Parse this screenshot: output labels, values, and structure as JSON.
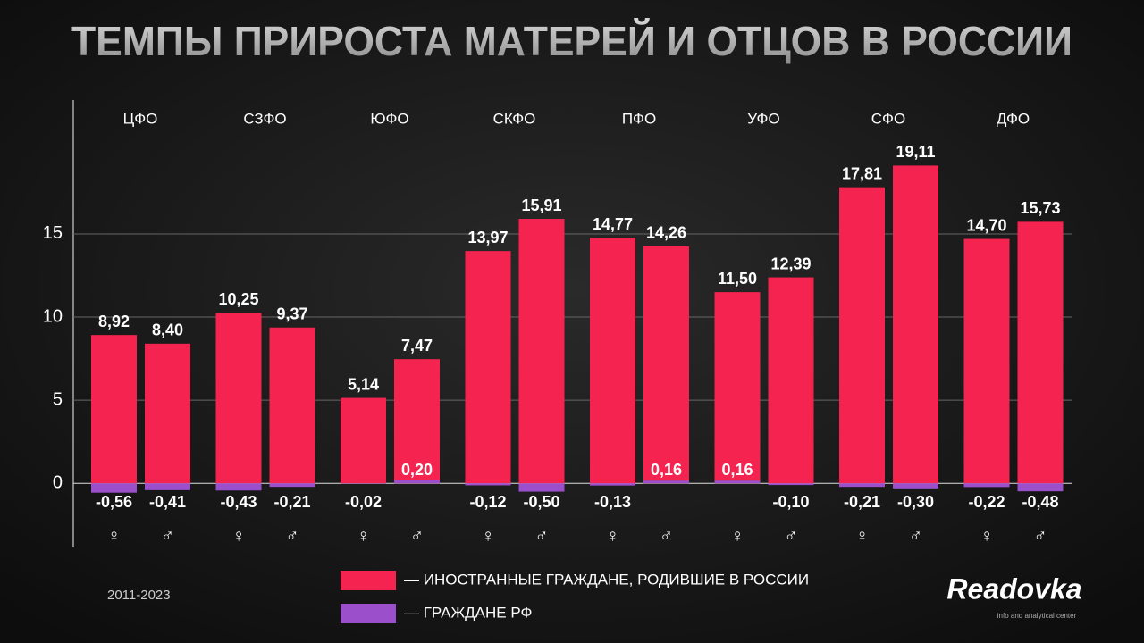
{
  "chart_data": {
    "type": "bar",
    "title": "ТЕМПЫ ПРИРОСТА МАТЕРЕЙ И ОТЦОВ В РОССИИ",
    "groups": [
      "ЦФО",
      "СЗФО",
      "ЮФО",
      "СКФО",
      "ПФО",
      "УФО",
      "СФО",
      "ДФО"
    ],
    "categories": [
      "♀",
      "♂",
      "♀",
      "♂",
      "♀",
      "♂",
      "♀",
      "♂",
      "♀",
      "♂",
      "♀",
      "♂",
      "♀",
      "♂",
      "♀",
      "♂"
    ],
    "series": [
      {
        "name": "— ИНОСТРАННЫЕ ГРАЖДАНЕ, РОДИВШИЕ В РОССИИ",
        "color": "#f5234f",
        "values": [
          8.92,
          8.4,
          10.25,
          9.37,
          5.14,
          7.47,
          13.97,
          15.91,
          14.77,
          14.26,
          11.5,
          12.39,
          17.81,
          19.11,
          14.7,
          15.73
        ],
        "value_labels": [
          "8,92",
          "8,40",
          "10,25",
          "9,37",
          "5,14",
          "7,47",
          "13,97",
          "15,91",
          "14,77",
          "14,26",
          "11,50",
          "12,39",
          "17,81",
          "19,11",
          "14,70",
          "15,73"
        ]
      },
      {
        "name": "— ГРАЖДАНЕ РФ",
        "color": "#9b4fcb",
        "values": [
          -0.56,
          -0.41,
          -0.43,
          -0.21,
          -0.02,
          0.2,
          -0.12,
          -0.5,
          -0.13,
          0.16,
          0.16,
          -0.1,
          -0.21,
          -0.3,
          -0.22,
          -0.48
        ],
        "value_labels": [
          "-0,56",
          "-0,41",
          "-0,43",
          "-0,21",
          "-0,02",
          "0,20",
          "-0,12",
          "-0,50",
          "-0,13",
          "0,16",
          "0,16",
          "-0,10",
          "-0,21",
          "-0,30",
          "-0,22",
          "-0,48"
        ]
      }
    ],
    "ylim": [
      -3.8,
      23
    ],
    "yticks": [
      0,
      5,
      10,
      15
    ],
    "grid": true,
    "legend": "bottom",
    "footnote": "2011-2023",
    "logo": "Readovka",
    "logo_subtitle": "info and analytical center"
  }
}
